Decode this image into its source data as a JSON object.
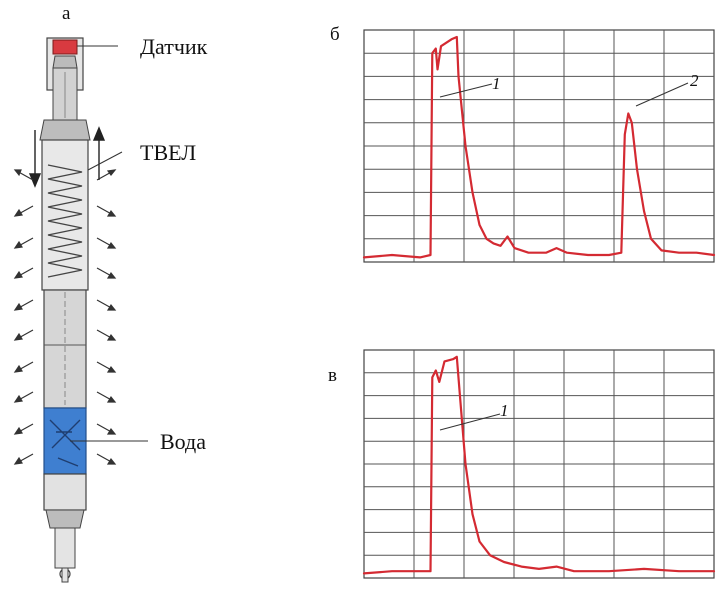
{
  "panels": {
    "a": {
      "letter": "а"
    },
    "b": {
      "letter": "б"
    },
    "v": {
      "letter": "в"
    }
  },
  "callouts": {
    "sensor": "Датчик",
    "fuel_rod": "ТВЕЛ",
    "water": "Вода"
  },
  "colors": {
    "trace": "#d42a32",
    "sensor": "#d83a40",
    "water": "#3f7fd0",
    "rod": "#d8d8d8",
    "grid": "#555555"
  },
  "chart_data": [
    {
      "type": "line",
      "panel": "б",
      "grid": true,
      "ylim": [
        0,
        1
      ],
      "xlim": [
        0,
        1
      ],
      "series": [
        {
          "labels": [
            "1",
            "2"
          ],
          "points": [
            [
              0.0,
              0.02
            ],
            [
              0.08,
              0.03
            ],
            [
              0.16,
              0.02
            ],
            [
              0.19,
              0.03
            ],
            [
              0.195,
              0.9
            ],
            [
              0.205,
              0.92
            ],
            [
              0.21,
              0.83
            ],
            [
              0.22,
              0.93
            ],
            [
              0.25,
              0.96
            ],
            [
              0.265,
              0.97
            ],
            [
              0.27,
              0.8
            ],
            [
              0.29,
              0.5
            ],
            [
              0.31,
              0.3
            ],
            [
              0.33,
              0.16
            ],
            [
              0.35,
              0.1
            ],
            [
              0.37,
              0.08
            ],
            [
              0.39,
              0.07
            ],
            [
              0.41,
              0.11
            ],
            [
              0.43,
              0.06
            ],
            [
              0.47,
              0.04
            ],
            [
              0.52,
              0.04
            ],
            [
              0.55,
              0.06
            ],
            [
              0.58,
              0.04
            ],
            [
              0.64,
              0.03
            ],
            [
              0.7,
              0.03
            ],
            [
              0.735,
              0.04
            ],
            [
              0.745,
              0.55
            ],
            [
              0.755,
              0.64
            ],
            [
              0.765,
              0.6
            ],
            [
              0.78,
              0.4
            ],
            [
              0.8,
              0.22
            ],
            [
              0.82,
              0.1
            ],
            [
              0.85,
              0.05
            ],
            [
              0.9,
              0.04
            ],
            [
              0.95,
              0.04
            ],
            [
              1.0,
              0.03
            ]
          ]
        }
      ]
    },
    {
      "type": "line",
      "panel": "в",
      "grid": true,
      "ylim": [
        0,
        1
      ],
      "xlim": [
        0,
        1
      ],
      "series": [
        {
          "labels": [
            "1"
          ],
          "points": [
            [
              0.0,
              0.02
            ],
            [
              0.08,
              0.03
            ],
            [
              0.15,
              0.03
            ],
            [
              0.19,
              0.03
            ],
            [
              0.195,
              0.88
            ],
            [
              0.205,
              0.91
            ],
            [
              0.215,
              0.86
            ],
            [
              0.23,
              0.95
            ],
            [
              0.255,
              0.96
            ],
            [
              0.265,
              0.97
            ],
            [
              0.275,
              0.78
            ],
            [
              0.29,
              0.5
            ],
            [
              0.31,
              0.28
            ],
            [
              0.33,
              0.16
            ],
            [
              0.36,
              0.1
            ],
            [
              0.4,
              0.07
            ],
            [
              0.45,
              0.05
            ],
            [
              0.5,
              0.04
            ],
            [
              0.55,
              0.05
            ],
            [
              0.6,
              0.03
            ],
            [
              0.7,
              0.03
            ],
            [
              0.8,
              0.04
            ],
            [
              0.9,
              0.03
            ],
            [
              1.0,
              0.03
            ]
          ]
        }
      ]
    }
  ]
}
